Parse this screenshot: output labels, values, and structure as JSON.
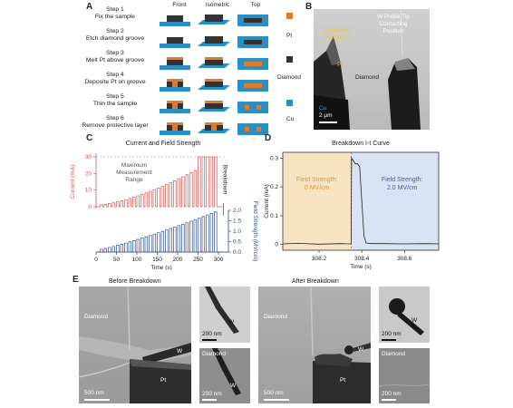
{
  "panel_a": {
    "letter": "A",
    "columns": [
      "Front",
      "Isometric",
      "Top"
    ],
    "steps": [
      {
        "title": "Step 1",
        "desc": "Fix the sample"
      },
      {
        "title": "Step 2",
        "desc": "Etch diamond groove"
      },
      {
        "title": "Step 3",
        "desc": "Melt Pt above groove"
      },
      {
        "title": "Step 4",
        "desc": "Deposite Pt on groove"
      },
      {
        "title": "Step 5",
        "desc": "Thin the sample"
      },
      {
        "title": "Step 6",
        "desc": "Remove protective layer"
      }
    ],
    "legend": [
      {
        "label": "Pt",
        "color": "#e07b2a"
      },
      {
        "label": "Diamond",
        "color": "#333333"
      },
      {
        "label": "Cu",
        "color": "#2b8fc4"
      }
    ]
  },
  "panel_b": {
    "letter": "B",
    "annotations": {
      "probe": "W Probe Tip\nContacting\nPosition",
      "conductive": "Conductive\nPathways",
      "pt": "Pt",
      "diamond": "Diamond",
      "cu": "Cu",
      "scale": "2 μm"
    }
  },
  "panel_c": {
    "letter": "C",
    "title": "Current and Field Strength",
    "annot_max": "Maximum\nMeasurement\nRange",
    "annot_breakdown": "Breakdown",
    "chart_data": {
      "type": "line",
      "title": "Current and Field Strength",
      "xlabel": "Time (s)",
      "xlim": [
        0,
        320
      ],
      "xticks": [
        0,
        50,
        100,
        150,
        200,
        250,
        300
      ],
      "series": [
        {
          "name": "Current (mA)",
          "color": "#d9534f",
          "ylim": [
            0,
            30
          ],
          "yticks": [
            0,
            10,
            20,
            30
          ],
          "description": "stepped pulse train, pulse amplitude increasing from ~1 to 30 mA, saturating at 30 from ~240 s"
        },
        {
          "name": "Field Strength (MV/cm)",
          "color": "#2d4f96",
          "ylim": [
            0,
            2.0
          ],
          "yticks": [
            0,
            0.5,
            1.0,
            1.5,
            2.0
          ],
          "description": "stepped pulse train, pulse amplitude increasing from ~0.1 to 2.0 MV/cm"
        }
      ],
      "reference_line": {
        "y_current": 30,
        "label": "Maximum Measurement Range"
      }
    }
  },
  "panel_d": {
    "letter": "D",
    "title": "Breakdown  I-t  Curve",
    "region_left": "Field Strength:\n0 MV/cm",
    "region_right": "Field Strength:\n2.0 MV/cm",
    "chart_data": {
      "type": "line",
      "title": "Breakdown I-t Curve",
      "xlabel": "Time (s)",
      "ylabel": "Current (mA)",
      "xlim": [
        308.03,
        308.76
      ],
      "ylim": [
        -0.02,
        0.32
      ],
      "xticks": [
        308.2,
        308.4,
        308.6
      ],
      "yticks": [
        0,
        0.1,
        0.2,
        0.3
      ],
      "split_x": 308.35,
      "x": [
        308.03,
        308.1,
        308.2,
        308.3,
        308.35,
        308.352,
        308.37,
        308.38,
        308.39,
        308.4,
        308.41,
        308.42,
        308.45,
        308.5,
        308.6,
        308.7,
        308.76
      ],
      "y": [
        0.002,
        0.004,
        0.001,
        0.003,
        0.002,
        0.3,
        0.28,
        0.28,
        0.27,
        0.15,
        0.03,
        0.005,
        0.003,
        0.003,
        0.002,
        0.003,
        0.002
      ]
    }
  },
  "panel_e": {
    "letter": "E",
    "before_title": "Before Breakdown",
    "after_title": "After Breakdown",
    "labels": {
      "diamond": "Diamond",
      "w": "W",
      "pt": "Pt",
      "s500": "500 nm",
      "s200": "200 nm"
    }
  }
}
